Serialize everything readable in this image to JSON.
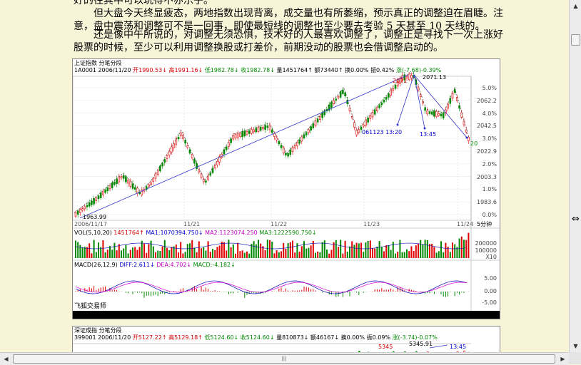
{
  "article": {
    "p0": "好的往其中可以玩得不亦乐乎。",
    "p1a": "　　但大盘今天终显疲态，两地指数出现背离，成交量也有所萎缩，预示真正的调整迫在眉睫。注",
    "p1b": "意，盘中震荡和调整可不是一回事，即使最短线的调整也至少要去考验 5 天甚至 10 天线的。",
    "p2a": "　　还是像中午所说的，对调整无须恐惧，技术好的人最喜欢调整了，调整正是寻找下一次上涨好",
    "p2b": "股票的时候，至少可以利用调整换股或打差价，前期没动的股票也会借调整启动的。"
  },
  "chart1": {
    "title": "上证指数 分笔分段",
    "code_date": "1A0001 2006/11/20",
    "open": "开1990.53↓",
    "high": "高1991.16↓",
    "low": "低1982.78↓",
    "close": "收1982.78↓",
    "vol": "量1451764↑",
    "amount": "额73440↑",
    "turnover": "换0.00%",
    "amp": "振0.42%",
    "change": "涨(-7.68)-0.39%",
    "ann_2071a": "2071",
    "ann_2071b": "2071.13",
    "ann_1963": "1963.99",
    "ann_time1": "061123 13:20",
    "ann_time2": "13:45",
    "ann_20": "20",
    "dates": [
      "2006/11/17",
      "11/21",
      "11/22",
      "11/23",
      "11/24"
    ],
    "period": "5分钟",
    "right_labels": [
      "5.0%",
      "2062.2",
      "4.0%",
      "2042.5",
      "3.0%",
      "2022.9",
      "2.0%",
      "2003.3",
      "1.0%",
      "1983.6",
      "0.0%"
    ],
    "vol_header": {
      "name": "VOL(5,10,20)",
      "v": "1451764↑",
      "ma1": "MA1:1070394.750↓",
      "ma2": "MA2:1123074.250",
      "ma3": "MA3:1222590.750↓"
    },
    "vol_axis": [
      "200000",
      "100000",
      "X10"
    ],
    "macd_header": {
      "name": "MACD(26,12,9)",
      "diff": "DIFF:2.611↓",
      "dea": "DEA:4.702↓",
      "macd": "MACD:-4.182↓"
    },
    "macd_axis": [
      "5.00",
      "0.00",
      "-5.00"
    ],
    "watermark": "飞狐交易师",
    "colors": {
      "up": "#e00000",
      "down": "#008800",
      "trend": "#3333cc",
      "diff": "#0000aa",
      "dea": "#d000d0"
    }
  },
  "chart2": {
    "title": "深证成指 分笔分段",
    "code_date": "399001 2006/11/20",
    "open": "开5127.22↑",
    "high": "高5129.18↑",
    "low": "低5124.60↓",
    "close": "收5124.60↓",
    "vol": "量810873↓",
    "amount": "额46167↓",
    "turnover": "换0.00%",
    "amp": "振0.09%",
    "change": "涨(-3.74)-0.07%",
    "ann_a": "5345",
    "ann_b": "5345.91",
    "ann_time": "13:45"
  },
  "scrollbar": {
    "up": "▲",
    "down": "▼",
    "left": "◀",
    "right": "▶",
    "grip": "|||"
  }
}
